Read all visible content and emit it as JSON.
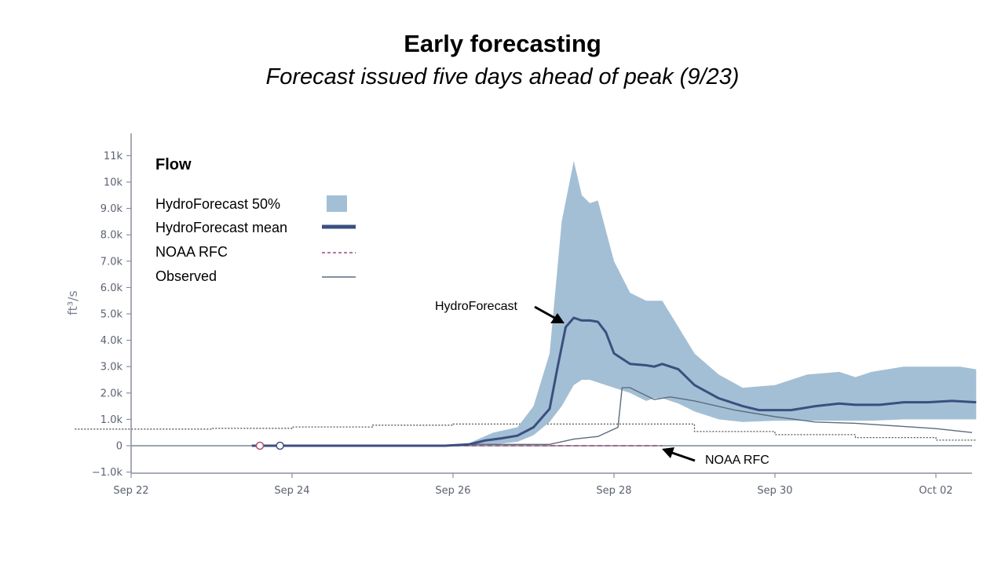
{
  "title": "Early forecasting",
  "subtitle": "Forecast issued five days ahead of peak (9/23)",
  "chart_data": {
    "type": "area",
    "title": "Early forecasting",
    "subtitle": "Forecast issued five days ahead of peak (9/23)",
    "ylabel": "ft³/s",
    "xlabel": "",
    "xlim": [
      22,
      32.5
    ],
    "ylim": [
      -1100,
      11900
    ],
    "x_unit": "day of month (Sep 22 = 22, Oct 02 = 32)",
    "xticks": [
      {
        "x": 22,
        "label": "Sep 22"
      },
      {
        "x": 24,
        "label": "Sep 24"
      },
      {
        "x": 26,
        "label": "Sep 26"
      },
      {
        "x": 28,
        "label": "Sep 28"
      },
      {
        "x": 30,
        "label": "Sep 30"
      },
      {
        "x": 32,
        "label": "Oct 02"
      }
    ],
    "yticks": [
      {
        "y": -1000,
        "label": "−1.0k"
      },
      {
        "y": 0,
        "label": "0"
      },
      {
        "y": 1000,
        "label": "1.0k"
      },
      {
        "y": 2000,
        "label": "2.0k"
      },
      {
        "y": 3000,
        "label": "3.0k"
      },
      {
        "y": 4000,
        "label": "4.0k"
      },
      {
        "y": 5000,
        "label": "5.0k"
      },
      {
        "y": 6000,
        "label": "6.0k"
      },
      {
        "y": 7000,
        "label": "7.0k"
      },
      {
        "y": 8000,
        "label": "8.0k"
      },
      {
        "y": 9000,
        "label": "9.0k"
      },
      {
        "y": 10000,
        "label": "10k"
      },
      {
        "y": 11000,
        "label": "11k"
      }
    ],
    "legend_title": "Flow",
    "legend_position": "top-left",
    "series": [
      {
        "name": "HydroForecast 50%",
        "kind": "band",
        "color": "#a3bfd5",
        "x": [
          23.5,
          25.9,
          26.2,
          26.5,
          26.8,
          27.0,
          27.2,
          27.35,
          27.5,
          27.6,
          27.7,
          27.8,
          28.0,
          28.2,
          28.4,
          28.5,
          28.6,
          28.8,
          29.0,
          29.3,
          29.6,
          30.0,
          30.4,
          30.8,
          31.0,
          31.2,
          31.6,
          32.0,
          32.3,
          32.5
        ],
        "upper": [
          0,
          0,
          100,
          500,
          700,
          1500,
          3500,
          8500,
          10800,
          9500,
          9200,
          9300,
          7000,
          5800,
          5500,
          5500,
          5500,
          4500,
          3500,
          2700,
          2200,
          2300,
          2700,
          2800,
          2600,
          2800,
          3000,
          3000,
          3000,
          2900
        ],
        "lower": [
          0,
          0,
          0,
          50,
          150,
          400,
          900,
          1500,
          2300,
          2500,
          2500,
          2400,
          2200,
          2000,
          1700,
          1800,
          1800,
          1600,
          1300,
          1000,
          900,
          950,
          950,
          950,
          950,
          950,
          1000,
          1000,
          1000,
          1000
        ]
      },
      {
        "name": "HydroForecast mean",
        "kind": "line",
        "color": "#3b4f7f",
        "x": [
          23.5,
          25.9,
          26.2,
          26.4,
          26.6,
          26.8,
          27.0,
          27.2,
          27.3,
          27.4,
          27.5,
          27.6,
          27.7,
          27.8,
          27.9,
          28.0,
          28.2,
          28.4,
          28.5,
          28.6,
          28.8,
          29.0,
          29.3,
          29.6,
          29.8,
          30.0,
          30.2,
          30.5,
          30.8,
          31.0,
          31.3,
          31.6,
          31.9,
          32.2,
          32.5
        ],
        "y": [
          0,
          0,
          50,
          200,
          280,
          380,
          700,
          1400,
          3000,
          4500,
          4850,
          4750,
          4750,
          4700,
          4300,
          3500,
          3100,
          3050,
          3000,
          3100,
          2900,
          2300,
          1800,
          1500,
          1350,
          1350,
          1350,
          1500,
          1600,
          1550,
          1550,
          1650,
          1650,
          1700,
          1650
        ]
      },
      {
        "name": "NOAA RFC",
        "kind": "dashed-line",
        "color": "#9e4a78",
        "x": [
          23.5,
          26.6,
          28.6
        ],
        "y": [
          0,
          0,
          0
        ]
      },
      {
        "name": "Observed",
        "kind": "line",
        "color": "#5c6b7e",
        "x": [
          23.5,
          25.9,
          26.3,
          26.8,
          27.2,
          27.5,
          27.8,
          28.05,
          28.1,
          28.2,
          28.5,
          28.7,
          29.0,
          29.5,
          30.0,
          30.5,
          31.0,
          31.5,
          32.0,
          32.45
        ],
        "y": [
          0,
          0,
          50,
          50,
          50,
          250,
          350,
          700,
          2200,
          2200,
          1750,
          1850,
          1700,
          1350,
          1100,
          900,
          850,
          750,
          650,
          500
        ]
      },
      {
        "name": "reference threshold",
        "kind": "dotted-step",
        "color": "#555555",
        "x": [
          21.3,
          23.0,
          23.0,
          24.0,
          24.0,
          25.0,
          25.0,
          26.0,
          26.0,
          29.0,
          29.0,
          30.0,
          30.0,
          31.0,
          31.0,
          32.0,
          32.0,
          32.5
        ],
        "y": [
          630,
          630,
          660,
          660,
          710,
          710,
          780,
          780,
          820,
          820,
          540,
          540,
          420,
          420,
          310,
          310,
          210,
          210
        ]
      }
    ],
    "points": [
      {
        "x": 23.6,
        "y": 0,
        "color": "#b0506e"
      },
      {
        "x": 23.85,
        "y": 0,
        "color": "#3b4f7f"
      }
    ],
    "annotations": [
      {
        "text": "HydroForecast",
        "target_x": 27.45,
        "target_y": 4750
      },
      {
        "text": "NOAA RFC",
        "target_x": 28.55,
        "target_y": -200
      }
    ]
  }
}
